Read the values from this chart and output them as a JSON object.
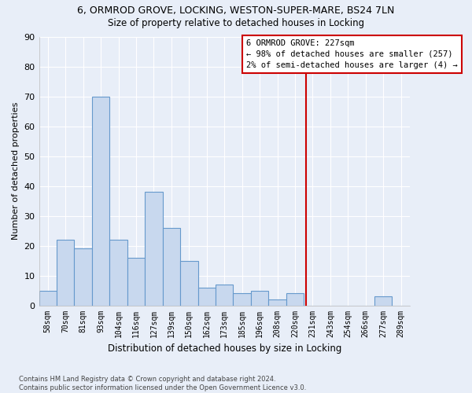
{
  "title1": "6, ORMROD GROVE, LOCKING, WESTON-SUPER-MARE, BS24 7LN",
  "title2": "Size of property relative to detached houses in Locking",
  "xlabel": "Distribution of detached houses by size in Locking",
  "ylabel": "Number of detached properties",
  "categories": [
    "58sqm",
    "70sqm",
    "81sqm",
    "93sqm",
    "104sqm",
    "116sqm",
    "127sqm",
    "139sqm",
    "150sqm",
    "162sqm",
    "173sqm",
    "185sqm",
    "196sqm",
    "208sqm",
    "220sqm",
    "231sqm",
    "243sqm",
    "254sqm",
    "266sqm",
    "277sqm",
    "289sqm"
  ],
  "values": [
    5,
    22,
    19,
    70,
    22,
    16,
    38,
    26,
    15,
    6,
    7,
    4,
    5,
    2,
    4,
    0,
    0,
    0,
    0,
    3,
    0
  ],
  "bar_color": "#c8d8ee",
  "bar_edge_color": "#6699cc",
  "bg_color": "#e8eef8",
  "grid_color": "#ffffff",
  "vline_color": "#cc0000",
  "annotation_text": "6 ORMROD GROVE: 227sqm\n← 98% of detached houses are smaller (257)\n2% of semi-detached houses are larger (4) →",
  "annotation_box_color": "#cc0000",
  "footnote": "Contains HM Land Registry data © Crown copyright and database right 2024.\nContains public sector information licensed under the Open Government Licence v3.0.",
  "ylim": [
    0,
    90
  ],
  "yticks": [
    0,
    10,
    20,
    30,
    40,
    50,
    60,
    70,
    80,
    90
  ],
  "vline_idx": 14.636
}
